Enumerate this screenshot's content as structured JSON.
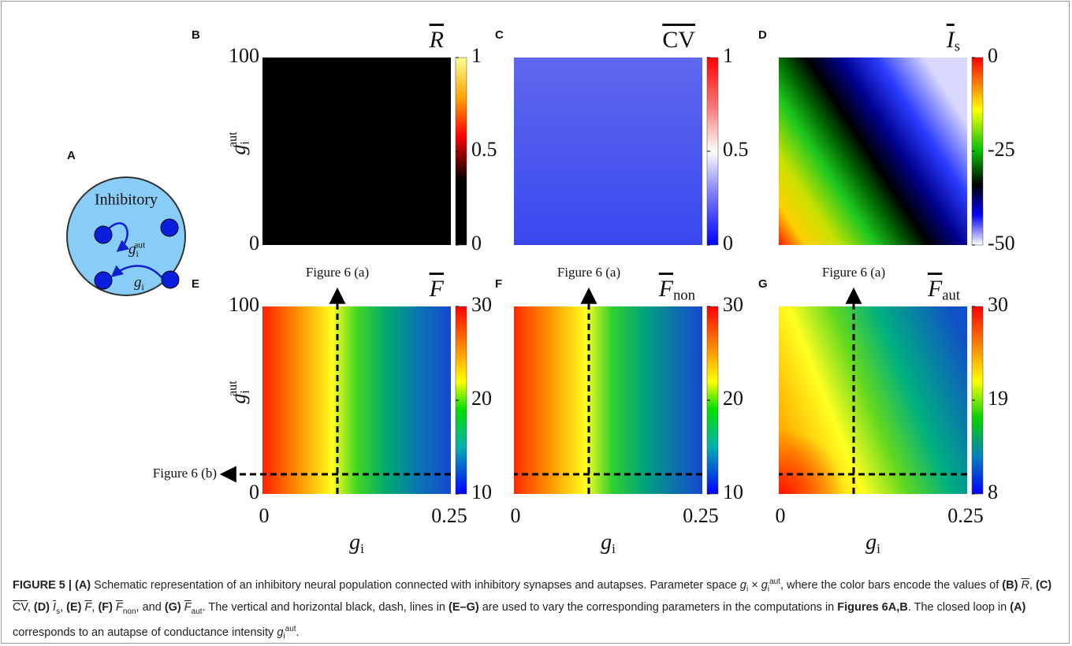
{
  "schematic": {
    "label": "A",
    "title": "Inhibitory",
    "self_loop": {
      "main": "g",
      "sub": "i",
      "sup": "aut"
    },
    "link": {
      "main": "g",
      "sub": "i"
    }
  },
  "panels": [
    {
      "label": "B",
      "title": {
        "main": "R"
      },
      "colorbar_ticks": [
        "1",
        "0.5",
        "0"
      ],
      "y_ticks": [
        "100",
        "0"
      ],
      "y_label": {
        "main": "g",
        "sub": "i",
        "sup": "aut"
      }
    },
    {
      "label": "C",
      "title": {
        "main": "CV"
      },
      "colorbar_ticks": [
        "1",
        "0.5",
        "0"
      ]
    },
    {
      "label": "D",
      "title": {
        "main": "I",
        "sub": "s"
      },
      "colorbar_ticks": [
        "0",
        "-25",
        "-50"
      ]
    },
    {
      "label": "E",
      "title": {
        "main": "F"
      },
      "colorbar_ticks": [
        "30",
        "20",
        "10"
      ],
      "y_ticks": [
        "100",
        "0"
      ],
      "y_label": {
        "main": "g",
        "sub": "i",
        "sup": "aut"
      },
      "x_ticks": [
        "0",
        "0.25"
      ],
      "x_label": {
        "main": "g",
        "sub": "i"
      },
      "annotations": [
        "Figure 6 (a)",
        "Figure 6 (b)"
      ]
    },
    {
      "label": "F",
      "title": {
        "main": "F",
        "sub": "non"
      },
      "colorbar_ticks": [
        "30",
        "20",
        "10"
      ],
      "x_ticks": [
        "0",
        "0.25"
      ],
      "x_label": {
        "main": "g",
        "sub": "i"
      },
      "annotations": [
        "Figure 6 (a)"
      ]
    },
    {
      "label": "G",
      "title": {
        "main": "F",
        "sub": "aut"
      },
      "colorbar_ticks": [
        "30",
        "19",
        "8"
      ],
      "x_ticks": [
        "0",
        "0.25"
      ],
      "x_label": {
        "main": "g",
        "sub": "i"
      },
      "annotations": [
        "Figure 6 (a)"
      ]
    }
  ],
  "caption": [
    {
      "text": "FIGURE 5 | (A)",
      "style": "b"
    },
    {
      "text": " Schematic representation of an inhibitory neural population connected with inhibitory synapses and autapses. Parameter space "
    },
    {
      "text": "g",
      "style": "i"
    },
    {
      "text": "i",
      "style": "sub"
    },
    {
      "text": " × "
    },
    {
      "text": "g",
      "style": "i"
    },
    {
      "text": "i",
      "style": "sub"
    },
    {
      "text": "aut",
      "style": "sup"
    },
    {
      "text": ", where the color bars encode the values of "
    },
    {
      "text": "(B)",
      "style": "b"
    },
    {
      "text": " "
    },
    {
      "text": "R",
      "style": "i over"
    },
    {
      "text": ", "
    },
    {
      "text": "(C)",
      "style": "b"
    },
    {
      "text": " "
    },
    {
      "text": "CV",
      "style": "over"
    },
    {
      "text": ", "
    },
    {
      "text": "(D)",
      "style": "b"
    },
    {
      "text": " "
    },
    {
      "text": "I",
      "style": "i over"
    },
    {
      "text": "s",
      "style": "sub"
    },
    {
      "text": ", "
    },
    {
      "text": "(E)",
      "style": "b"
    },
    {
      "text": " "
    },
    {
      "text": "F",
      "style": "i over"
    },
    {
      "text": ", "
    },
    {
      "text": "(F)",
      "style": "b"
    },
    {
      "text": " "
    },
    {
      "text": "F",
      "style": "i over"
    },
    {
      "text": "non",
      "style": "sub"
    },
    {
      "text": ", and "
    },
    {
      "text": "(G)",
      "style": "b"
    },
    {
      "text": " "
    },
    {
      "text": "F",
      "style": "i over"
    },
    {
      "text": "aut",
      "style": "sub"
    },
    {
      "text": ". The vertical and horizontal black, dash, lines in "
    },
    {
      "text": "(E–G)",
      "style": "b"
    },
    {
      "text": " are used to vary the corresponding parameters in the computations in "
    },
    {
      "text": "Figures 6A,B",
      "style": "b"
    },
    {
      "text": ". The closed loop in "
    },
    {
      "text": "(A)",
      "style": "b"
    },
    {
      "text": " corresponds to an autapse of conductance intensity "
    },
    {
      "text": "g",
      "style": "i"
    },
    {
      "text": "i",
      "style": "sub"
    },
    {
      "text": "aut",
      "style": "sup"
    },
    {
      "text": "."
    }
  ]
}
